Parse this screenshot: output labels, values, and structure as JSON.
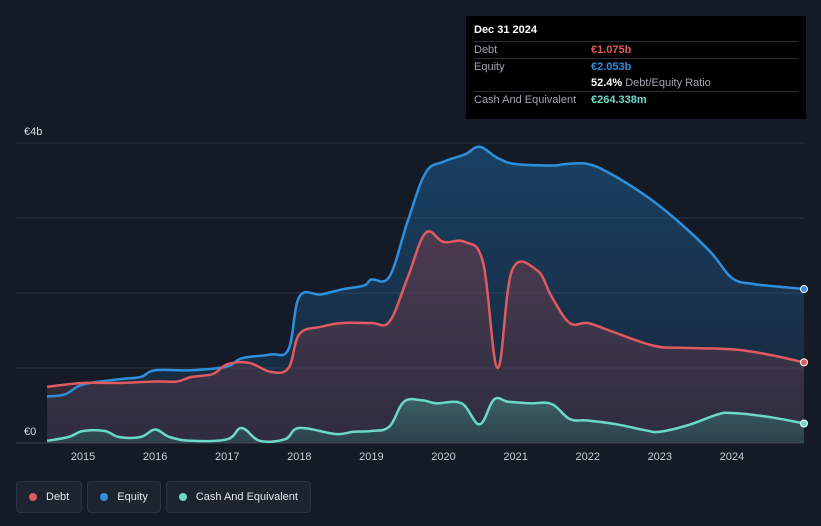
{
  "chart_data": {
    "type": "area",
    "y_axis": {
      "min": 0,
      "max": 4,
      "top_label": "€4b",
      "bottom_label": "€0"
    },
    "x_ticks": [
      "2015",
      "2016",
      "2017",
      "2018",
      "2019",
      "2020",
      "2021",
      "2022",
      "2023",
      "2024"
    ],
    "x_range": [
      2014.5,
      2025.0
    ],
    "series": [
      {
        "name": "Debt",
        "color": "#e05a5f",
        "points": [
          [
            2014.5,
            0.75
          ],
          [
            2015.0,
            0.8
          ],
          [
            2015.5,
            0.8
          ],
          [
            2016.0,
            0.82
          ],
          [
            2016.3,
            0.82
          ],
          [
            2016.5,
            0.88
          ],
          [
            2016.8,
            0.92
          ],
          [
            2017.0,
            1.05
          ],
          [
            2017.3,
            1.07
          ],
          [
            2017.6,
            0.95
          ],
          [
            2017.85,
            1.0
          ],
          [
            2018.0,
            1.45
          ],
          [
            2018.3,
            1.55
          ],
          [
            2018.6,
            1.6
          ],
          [
            2019.0,
            1.6
          ],
          [
            2019.25,
            1.62
          ],
          [
            2019.5,
            2.2
          ],
          [
            2019.75,
            2.8
          ],
          [
            2020.0,
            2.68
          ],
          [
            2020.3,
            2.68
          ],
          [
            2020.55,
            2.4
          ],
          [
            2020.75,
            1.0
          ],
          [
            2020.95,
            2.3
          ],
          [
            2021.3,
            2.3
          ],
          [
            2021.5,
            1.95
          ],
          [
            2021.75,
            1.6
          ],
          [
            2022.0,
            1.6
          ],
          [
            2022.3,
            1.5
          ],
          [
            2022.9,
            1.3
          ],
          [
            2023.3,
            1.27
          ],
          [
            2024.0,
            1.25
          ],
          [
            2024.5,
            1.18
          ],
          [
            2025.0,
            1.075
          ]
        ]
      },
      {
        "name": "Equity",
        "color": "#2e8fdc",
        "points": [
          [
            2014.5,
            0.62
          ],
          [
            2014.75,
            0.65
          ],
          [
            2015.0,
            0.78
          ],
          [
            2015.5,
            0.85
          ],
          [
            2015.8,
            0.88
          ],
          [
            2016.0,
            0.97
          ],
          [
            2016.5,
            0.97
          ],
          [
            2017.0,
            1.02
          ],
          [
            2017.2,
            1.13
          ],
          [
            2017.6,
            1.18
          ],
          [
            2017.85,
            1.25
          ],
          [
            2018.0,
            1.95
          ],
          [
            2018.3,
            1.98
          ],
          [
            2018.6,
            2.05
          ],
          [
            2018.9,
            2.1
          ],
          [
            2019.0,
            2.18
          ],
          [
            2019.25,
            2.22
          ],
          [
            2019.5,
            2.95
          ],
          [
            2019.75,
            3.6
          ],
          [
            2020.0,
            3.75
          ],
          [
            2020.3,
            3.85
          ],
          [
            2020.5,
            3.95
          ],
          [
            2020.75,
            3.8
          ],
          [
            2021.0,
            3.72
          ],
          [
            2021.5,
            3.7
          ],
          [
            2021.7,
            3.72
          ],
          [
            2022.0,
            3.72
          ],
          [
            2022.3,
            3.6
          ],
          [
            2022.8,
            3.3
          ],
          [
            2023.2,
            3.0
          ],
          [
            2023.7,
            2.55
          ],
          [
            2024.0,
            2.2
          ],
          [
            2024.3,
            2.12
          ],
          [
            2024.7,
            2.08
          ],
          [
            2025.0,
            2.053
          ]
        ]
      },
      {
        "name": "Cash And Equivalent",
        "color": "#6cd8c6",
        "points": [
          [
            2014.5,
            0.03
          ],
          [
            2014.8,
            0.08
          ],
          [
            2015.0,
            0.16
          ],
          [
            2015.3,
            0.16
          ],
          [
            2015.5,
            0.08
          ],
          [
            2015.8,
            0.08
          ],
          [
            2016.0,
            0.18
          ],
          [
            2016.2,
            0.08
          ],
          [
            2016.5,
            0.03
          ],
          [
            2017.0,
            0.05
          ],
          [
            2017.2,
            0.2
          ],
          [
            2017.45,
            0.03
          ],
          [
            2017.8,
            0.05
          ],
          [
            2018.0,
            0.2
          ],
          [
            2018.5,
            0.12
          ],
          [
            2018.75,
            0.15
          ],
          [
            2019.0,
            0.16
          ],
          [
            2019.25,
            0.22
          ],
          [
            2019.45,
            0.55
          ],
          [
            2019.7,
            0.57
          ],
          [
            2019.9,
            0.53
          ],
          [
            2020.25,
            0.53
          ],
          [
            2020.5,
            0.25
          ],
          [
            2020.7,
            0.58
          ],
          [
            2020.9,
            0.55
          ],
          [
            2021.2,
            0.53
          ],
          [
            2021.5,
            0.52
          ],
          [
            2021.75,
            0.32
          ],
          [
            2022.0,
            0.3
          ],
          [
            2022.4,
            0.25
          ],
          [
            2022.8,
            0.17
          ],
          [
            2023.0,
            0.15
          ],
          [
            2023.4,
            0.24
          ],
          [
            2023.8,
            0.38
          ],
          [
            2024.0,
            0.4
          ],
          [
            2024.5,
            0.35
          ],
          [
            2025.0,
            0.26
          ]
        ]
      }
    ]
  },
  "tooltip": {
    "date": "Dec 31 2024",
    "debt_label": "Debt",
    "debt_value": "€1.075b",
    "equity_label": "Equity",
    "equity_value": "€2.053b",
    "ratio_value": "52.4%",
    "ratio_label": "Debt/Equity Ratio",
    "cash_label": "Cash And Equivalent",
    "cash_value": "€264.338m"
  },
  "legend": [
    {
      "label": "Debt",
      "color": "#e05a5f"
    },
    {
      "label": "Equity",
      "color": "#2e8fdc"
    },
    {
      "label": "Cash And Equivalent",
      "color": "#6cd8c6"
    }
  ]
}
